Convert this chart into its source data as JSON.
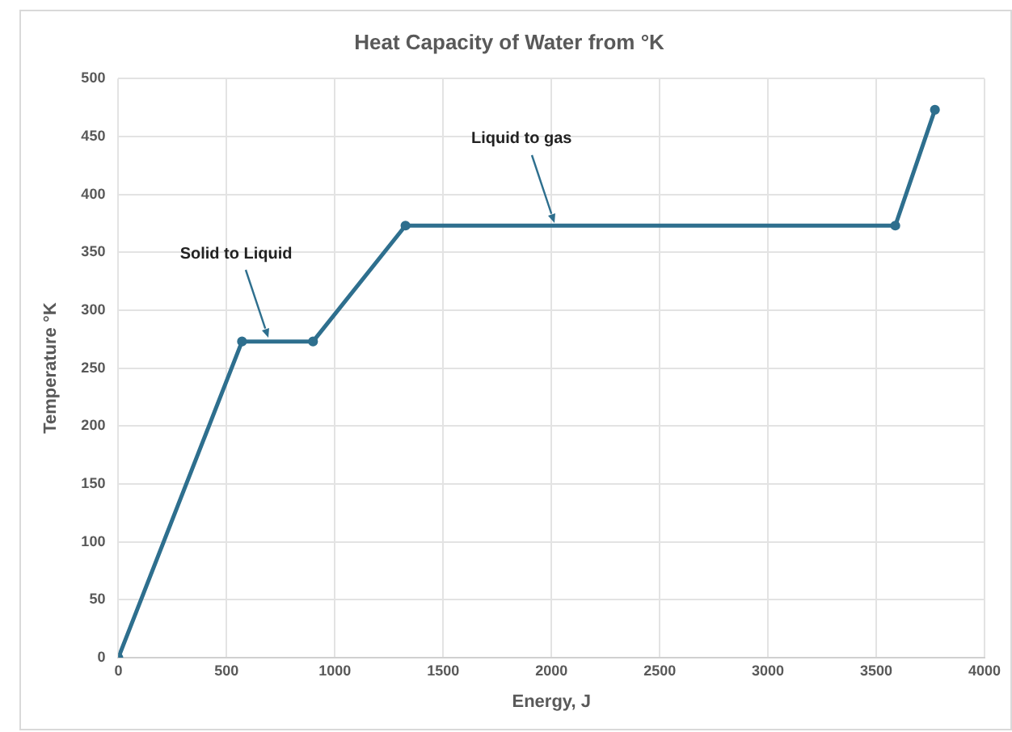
{
  "chart_data": {
    "type": "line",
    "title": "Heat Capacity of Water from °K",
    "xlabel": "Energy, J",
    "ylabel": "Temperature °K",
    "x": [
      0,
      571,
      899,
      1326,
      3588,
      3771
    ],
    "series": [
      {
        "color": "#2e6f8e",
        "values": [
          0,
          273,
          273,
          373,
          373,
          473
        ]
      }
    ],
    "xlim": [
      0,
      4000
    ],
    "xticks": [
      0,
      500,
      1000,
      1500,
      2000,
      2500,
      3000,
      3500,
      4000
    ],
    "ylim": [
      0,
      500
    ],
    "yticks": [
      0,
      50,
      100,
      150,
      200,
      250,
      300,
      350,
      400,
      450,
      500
    ],
    "grid": true,
    "legend": false,
    "marker": "circle",
    "line_style": "solid",
    "annotations": [
      {
        "text": "Solid to Liquid",
        "x": 693,
        "y": 273
      },
      {
        "text": "Liquid to gas",
        "x": 2011,
        "y": 373
      }
    ]
  }
}
